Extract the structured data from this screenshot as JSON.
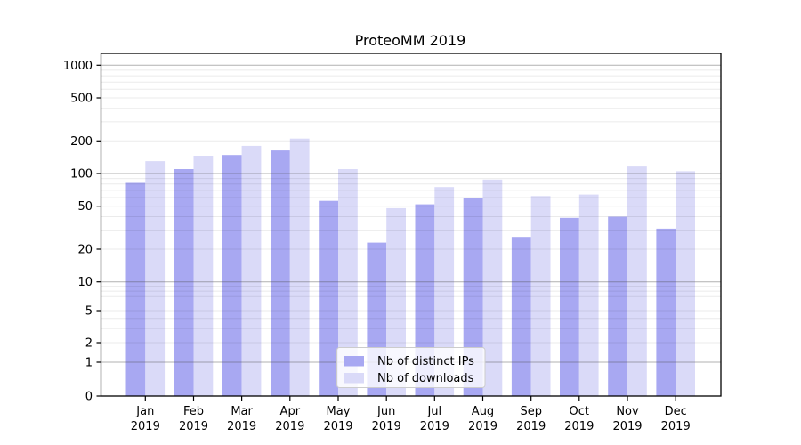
{
  "title": "ProteoMM 2019",
  "colors": {
    "ips_bar": "#a8a8f2",
    "downloads_bar": "#dadaf8",
    "grid_major": "rgba(80,80,80,0.45)",
    "grid_minor": "rgba(0,0,0,0.08)",
    "axis_line": "#000000",
    "text": "#000000",
    "legend_border": "#cccccc",
    "legend_background": "rgba(255,255,255,0.8)"
  },
  "y_axis": {
    "scale": "symlog",
    "tick_values": [
      0,
      1,
      2,
      5,
      10,
      20,
      50,
      100,
      200,
      500,
      1000
    ],
    "tick_labels": [
      "0",
      "1",
      "2",
      "5",
      "10",
      "20",
      "50",
      "100",
      "200",
      "500",
      "1000"
    ]
  },
  "x_axis": {
    "months": [
      "Jan",
      "Feb",
      "Mar",
      "Apr",
      "May",
      "Jun",
      "Jul",
      "Aug",
      "Sep",
      "Oct",
      "Nov",
      "Dec"
    ],
    "year": "2019"
  },
  "legend": {
    "items": [
      {
        "label": "Nb of distinct IPs",
        "series": "ips"
      },
      {
        "label": "Nb of downloads",
        "series": "downloads"
      }
    ]
  },
  "chart_data": {
    "type": "bar",
    "title": "ProteoMM 2019",
    "categories": [
      "Jan 2019",
      "Feb 2019",
      "Mar 2019",
      "Apr 2019",
      "May 2019",
      "Jun 2019",
      "Jul 2019",
      "Aug 2019",
      "Sep 2019",
      "Oct 2019",
      "Nov 2019",
      "Dec 2019"
    ],
    "series": [
      {
        "name": "Nb of distinct IPs",
        "values": [
          82,
          110,
          148,
          163,
          56,
          23,
          52,
          59,
          26,
          39,
          40,
          31
        ]
      },
      {
        "name": "Nb of downloads",
        "values": [
          130,
          146,
          180,
          210,
          110,
          48,
          75,
          88,
          62,
          64,
          116,
          105
        ]
      }
    ],
    "xlabel": "",
    "ylabel": "",
    "yscale": "symlog",
    "yticks": [
      0,
      1,
      2,
      5,
      10,
      20,
      50,
      100,
      200,
      500,
      1000
    ],
    "ylim": [
      0,
      1000
    ],
    "grid": "both (major + minor horizontal gridlines, drawn over bars)",
    "legend_position": "lower center"
  }
}
